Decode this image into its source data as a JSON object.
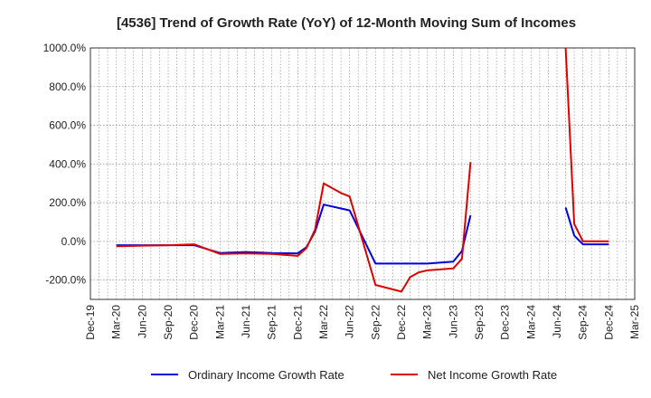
{
  "chart_data": {
    "type": "line",
    "title": "[4536]  Trend of Growth Rate (YoY) of 12-Month Moving Sum of Incomes",
    "xlabel": "",
    "ylabel": "",
    "ylim": [
      -300,
      1000
    ],
    "y_ticks": [
      -200,
      0,
      200,
      400,
      600,
      800,
      1000
    ],
    "y_tick_labels": [
      "-200.0%",
      "0.0%",
      "200.0%",
      "400.0%",
      "600.0%",
      "800.0%",
      "1000.0%"
    ],
    "x_ticks": [
      "Dec-19",
      "Mar-20",
      "Jun-20",
      "Sep-20",
      "Dec-20",
      "Mar-21",
      "Jun-21",
      "Sep-21",
      "Dec-21",
      "Mar-22",
      "Jun-22",
      "Sep-22",
      "Dec-22",
      "Mar-23",
      "Jun-23",
      "Sep-23",
      "Dec-23",
      "Mar-24",
      "Jun-24",
      "Sep-24",
      "Dec-24",
      "Mar-25"
    ],
    "grid": true,
    "legend_position": "bottom",
    "series": [
      {
        "name": "Ordinary Income Growth Rate",
        "color": "#0000dd",
        "points": [
          [
            "2020-03",
            -20
          ],
          [
            "2020-06",
            -20
          ],
          [
            "2020-09",
            -20
          ],
          [
            "2020-12",
            -20
          ],
          [
            "2021-03",
            -60
          ],
          [
            "2021-06",
            -55
          ],
          [
            "2021-09",
            -60
          ],
          [
            "2021-12",
            -62
          ],
          [
            "2022-01",
            -30
          ],
          [
            "2022-02",
            50
          ],
          [
            "2022-03",
            190
          ],
          [
            "2022-06",
            160
          ],
          [
            "2022-09",
            -115
          ],
          [
            "2022-12",
            -115
          ],
          [
            "2023-03",
            -115
          ],
          [
            "2023-06",
            -105
          ],
          [
            "2023-07",
            -50
          ],
          [
            "2023-08",
            135
          ],
          [
            "2024-07",
            175
          ],
          [
            "2024-08",
            30
          ],
          [
            "2024-09",
            -15
          ],
          [
            "2024-12",
            -15
          ]
        ]
      },
      {
        "name": "Net Income Growth Rate",
        "color": "#dd0000",
        "points": [
          [
            "2020-03",
            -25
          ],
          [
            "2020-06",
            -22
          ],
          [
            "2020-09",
            -20
          ],
          [
            "2020-12",
            -15
          ],
          [
            "2021-03",
            -65
          ],
          [
            "2021-06",
            -62
          ],
          [
            "2021-09",
            -65
          ],
          [
            "2021-12",
            -75
          ],
          [
            "2022-01",
            -35
          ],
          [
            "2022-02",
            60
          ],
          [
            "2022-03",
            300
          ],
          [
            "2022-05",
            250
          ],
          [
            "2022-06",
            232
          ],
          [
            "2022-09",
            -225
          ],
          [
            "2022-12",
            -260
          ],
          [
            "2023-01",
            -185
          ],
          [
            "2023-02",
            -160
          ],
          [
            "2023-03",
            -150
          ],
          [
            "2023-06",
            -140
          ],
          [
            "2023-07",
            -90
          ],
          [
            "2023-08",
            410
          ],
          [
            "2024-07",
            1000
          ],
          [
            "2024-08",
            90
          ],
          [
            "2024-09",
            0
          ],
          [
            "2024-12",
            0
          ]
        ]
      }
    ]
  }
}
